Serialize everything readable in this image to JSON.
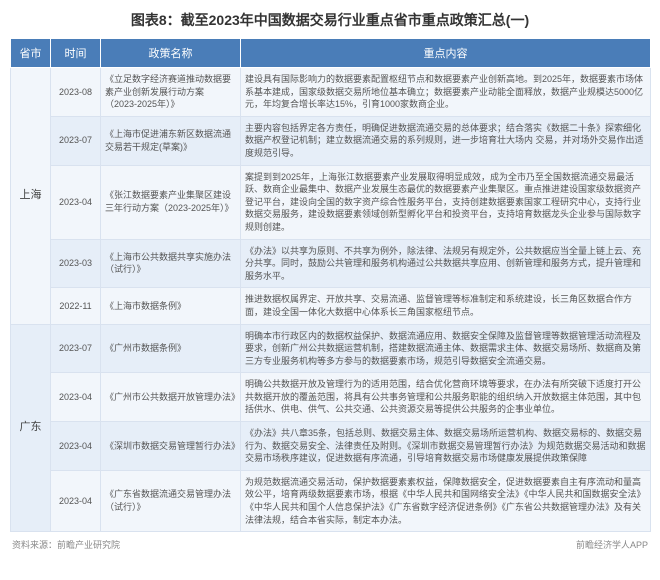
{
  "title": "图表8：截至2023年中国数据交易行业重点省市重点政策汇总(一)",
  "columns": [
    "省市",
    "时间",
    "政策名称",
    "重点内容"
  ],
  "rows": [
    {
      "province": "上海",
      "province_rowspan": 5,
      "date": "2023-08",
      "policy": "《立足数字经济赛道推动数据要素产业创新发展行动方案（2023-2025年）》",
      "content": "建设具有国际影响力的数据要素配置枢纽节点和数据要素产业创新高地。到2025年，数据要素市场体系基本建成，国家级数据交易所地位基本确立；数据要素产业动能全面释放，数据产业规模达5000亿元，年均复合增长率达15%，引育1000家数商企业。"
    },
    {
      "date": "2023-07",
      "policy": "《上海市促进浦东新区数据流通交易若干规定(草案)》",
      "content": "主要内容包括界定各方责任，明确促进数据流通交易的总体要求；结合落实《数据二十条》探索细化数据产权登记机制；建立数据流通交易的系列规则，进一步培育壮大场内 交易，并对场外交易作出适度规范引导。"
    },
    {
      "date": "2023-04",
      "policy": "《张江数据要素产业集聚区建设三年行动方案（2023-2025年）》",
      "content": "案提到到2025年，上海张江数据要素产业发展取得明显成效，成为全市乃至全国数据流通交易最活跃、数商企业最集中、数据产业发展生态最优的数据要素产业集聚区。重点推进建设国家级数据资产登记平台，建设向全国的数字资产综合性服务平台，支持创建数据要素国家工程研究中心，支持行业数据交易服务，建设数据要素领域创新型孵化平台和投资平台，支持培育数据龙头企业参与国际数字规则创建。"
    },
    {
      "date": "2023-03",
      "policy": "《上海市公共数据共享实施办法（试行）》",
      "content": "《办法》以共享为原则、不共享为例外，除法律、法规另有规定外，公共数据应当全量上链上云、充分共享。同时，鼓励公共管理和服务机构通过公共数据共享应用、创新管理和服务方式，提升管理和服务水平。"
    },
    {
      "date": "2022-11",
      "policy": "《上海市数据条例》",
      "content": "推进数据权属界定、开放共享、交易流通、监督管理等标准制定和系统建设，长三角区数据合作方面，建设全国一体化大数据中心体系长三角国家枢纽节点。"
    },
    {
      "province": "广东",
      "province_rowspan": 4,
      "date": "2023-07",
      "policy": "《广州市数据条例》",
      "content": "明确本市行政区内的数据权益保护、数据流通应用、数据安全保障及监督管理等数据管理活动流程及要求，创新广州公共数据运营机制，搭建数据流通主体、数据需求主体、数据交易场所、数据商及第三方专业服务机构等多方参与的数据要素市场，规范引导数据安全流通交易。"
    },
    {
      "date": "2023-04",
      "policy": "《广州市公共数据开放管理办法》",
      "content": "明确公共数据开放及管理行为的适用范围，结合优化营商环境等要求，在办法有所突破下适度打开公共数据开放的覆盖范围，将具有公共事务管理和公共服务职能的组织纳入开放数据主体范围，其中包括供水、供电、供气、公共交通、公共资源交易等提供公共服务的企事业单位。"
    },
    {
      "date": "2023-04",
      "policy": "《深圳市数据交易管理暂行办法》",
      "content": "《办法》共八章35条，包括总则、数据交易主体、数据交易场所运营机构、数据交易标的、数据交易行为、数据交易安全、法律责任及附则。《深圳市数据交易管理暂行办法》为规范数据交易活动和数据交易市场秩序建议，促进数据有序流通，引导培育数据交易市场健康发展提供政策保障"
    },
    {
      "date": "2023-04",
      "policy": "《广东省数据流通交易管理办法（试行）》",
      "content": "为规范数据流通交易活动，保护数据要素素权益，保障数据安全，促进数据要素自主有序流动和量高效公平，培育两级数据要素市场，根据《中华人民共和国网络安全法》《中华人民共和国数据安全法》《中华人民共和国个人信息保护法》《广东省数字经济促进条例》《广东省公共数据管理办法》及有关法律法规，结合本省实际，制定本办法。"
    }
  ],
  "footer_left": "资料来源：前瞻产业研究院",
  "footer_right": "前瞻经济学人APP",
  "colors": {
    "header_bg": "#4a7db8",
    "header_text": "#ffffff",
    "row_odd": "#f2f6fb",
    "row_even": "#e6eef8",
    "border": "#d9e2ef"
  }
}
